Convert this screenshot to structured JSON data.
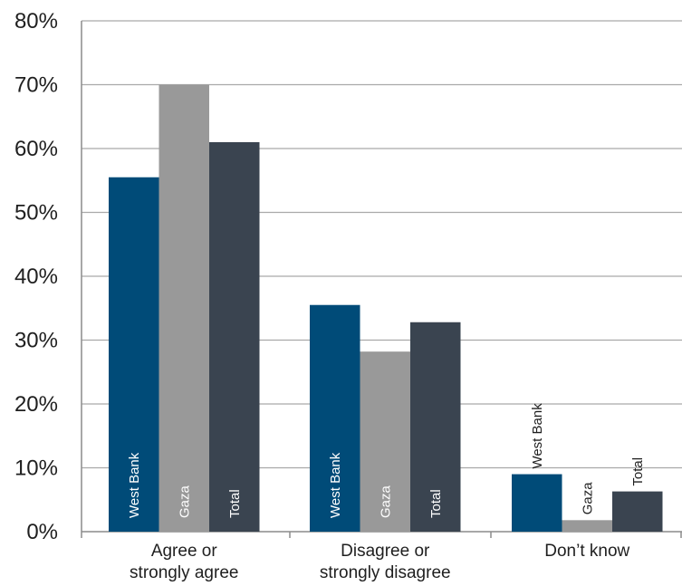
{
  "chart_data": {
    "type": "bar",
    "categories": [
      [
        "Agree or",
        "strongly agree"
      ],
      [
        "Disagree or",
        "strongly disagree"
      ],
      [
        "Don’t know"
      ]
    ],
    "series": [
      {
        "name": "West Bank",
        "color": "#004b78",
        "values": [
          55.5,
          35.5,
          9.0
        ]
      },
      {
        "name": "Gaza",
        "color": "#999999",
        "values": [
          70.0,
          28.2,
          1.8
        ]
      },
      {
        "name": "Total",
        "color": "#3a4450",
        "values": [
          61.0,
          32.8,
          6.3
        ]
      }
    ],
    "y_ticks": [
      "0%",
      "10%",
      "20%",
      "30%",
      "40%",
      "50%",
      "60%",
      "70%",
      "80%"
    ],
    "ylim": [
      0,
      80
    ],
    "grid": true,
    "legend": "none",
    "title": "",
    "xlabel": "",
    "ylabel": ""
  }
}
